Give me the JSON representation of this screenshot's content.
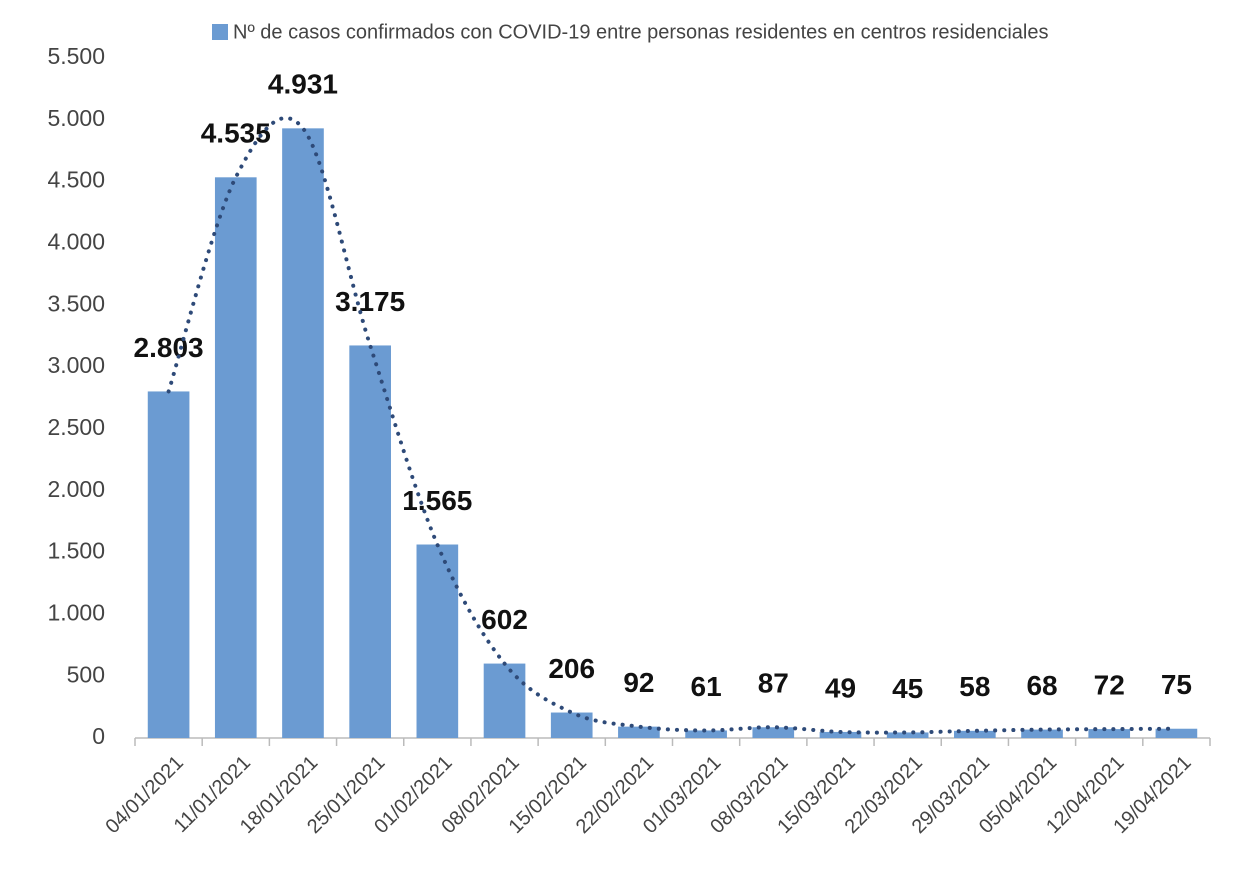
{
  "chart_data": {
    "type": "bar",
    "categories": [
      "04/01/2021",
      "11/01/2021",
      "18/01/2021",
      "25/01/2021",
      "01/02/2021",
      "08/02/2021",
      "15/02/2021",
      "22/02/2021",
      "01/03/2021",
      "08/03/2021",
      "15/03/2021",
      "22/03/2021",
      "29/03/2021",
      "05/04/2021",
      "12/04/2021",
      "19/04/2021"
    ],
    "series": [
      {
        "name": "Nº de casos confirmados con COVID-19 entre personas residentes en centros residenciales",
        "color": "#6b9bd2",
        "values": [
          2803,
          4535,
          4931,
          3175,
          1565,
          602,
          206,
          92,
          61,
          87,
          49,
          45,
          58,
          68,
          72,
          75
        ],
        "value_labels": [
          "2.803",
          "4.535",
          "4.931",
          "3.175",
          "1.565",
          "602",
          "206",
          "92",
          "61",
          "87",
          "49",
          "45",
          "58",
          "68",
          "72",
          "75"
        ]
      }
    ],
    "trendline_color": "#2e4a78",
    "ylim": [
      0,
      5500
    ],
    "yticks": [
      0,
      500,
      {
        "value": 1000,
        "label": "1.000"
      },
      {
        "value": 1500,
        "label": "1.500"
      },
      {
        "value": 2000,
        "label": "2.000"
      },
      {
        "value": 2500,
        "label": "2.500"
      },
      {
        "value": 3000,
        "label": "3.000"
      },
      {
        "value": 3500,
        "label": "3.500"
      },
      {
        "value": 4000,
        "label": "4.000"
      },
      {
        "value": 4500,
        "label": "4.500"
      },
      {
        "value": 5000,
        "label": "5.000"
      },
      {
        "value": 5500,
        "label": "5.500"
      }
    ],
    "grid": false,
    "legend": "top"
  }
}
